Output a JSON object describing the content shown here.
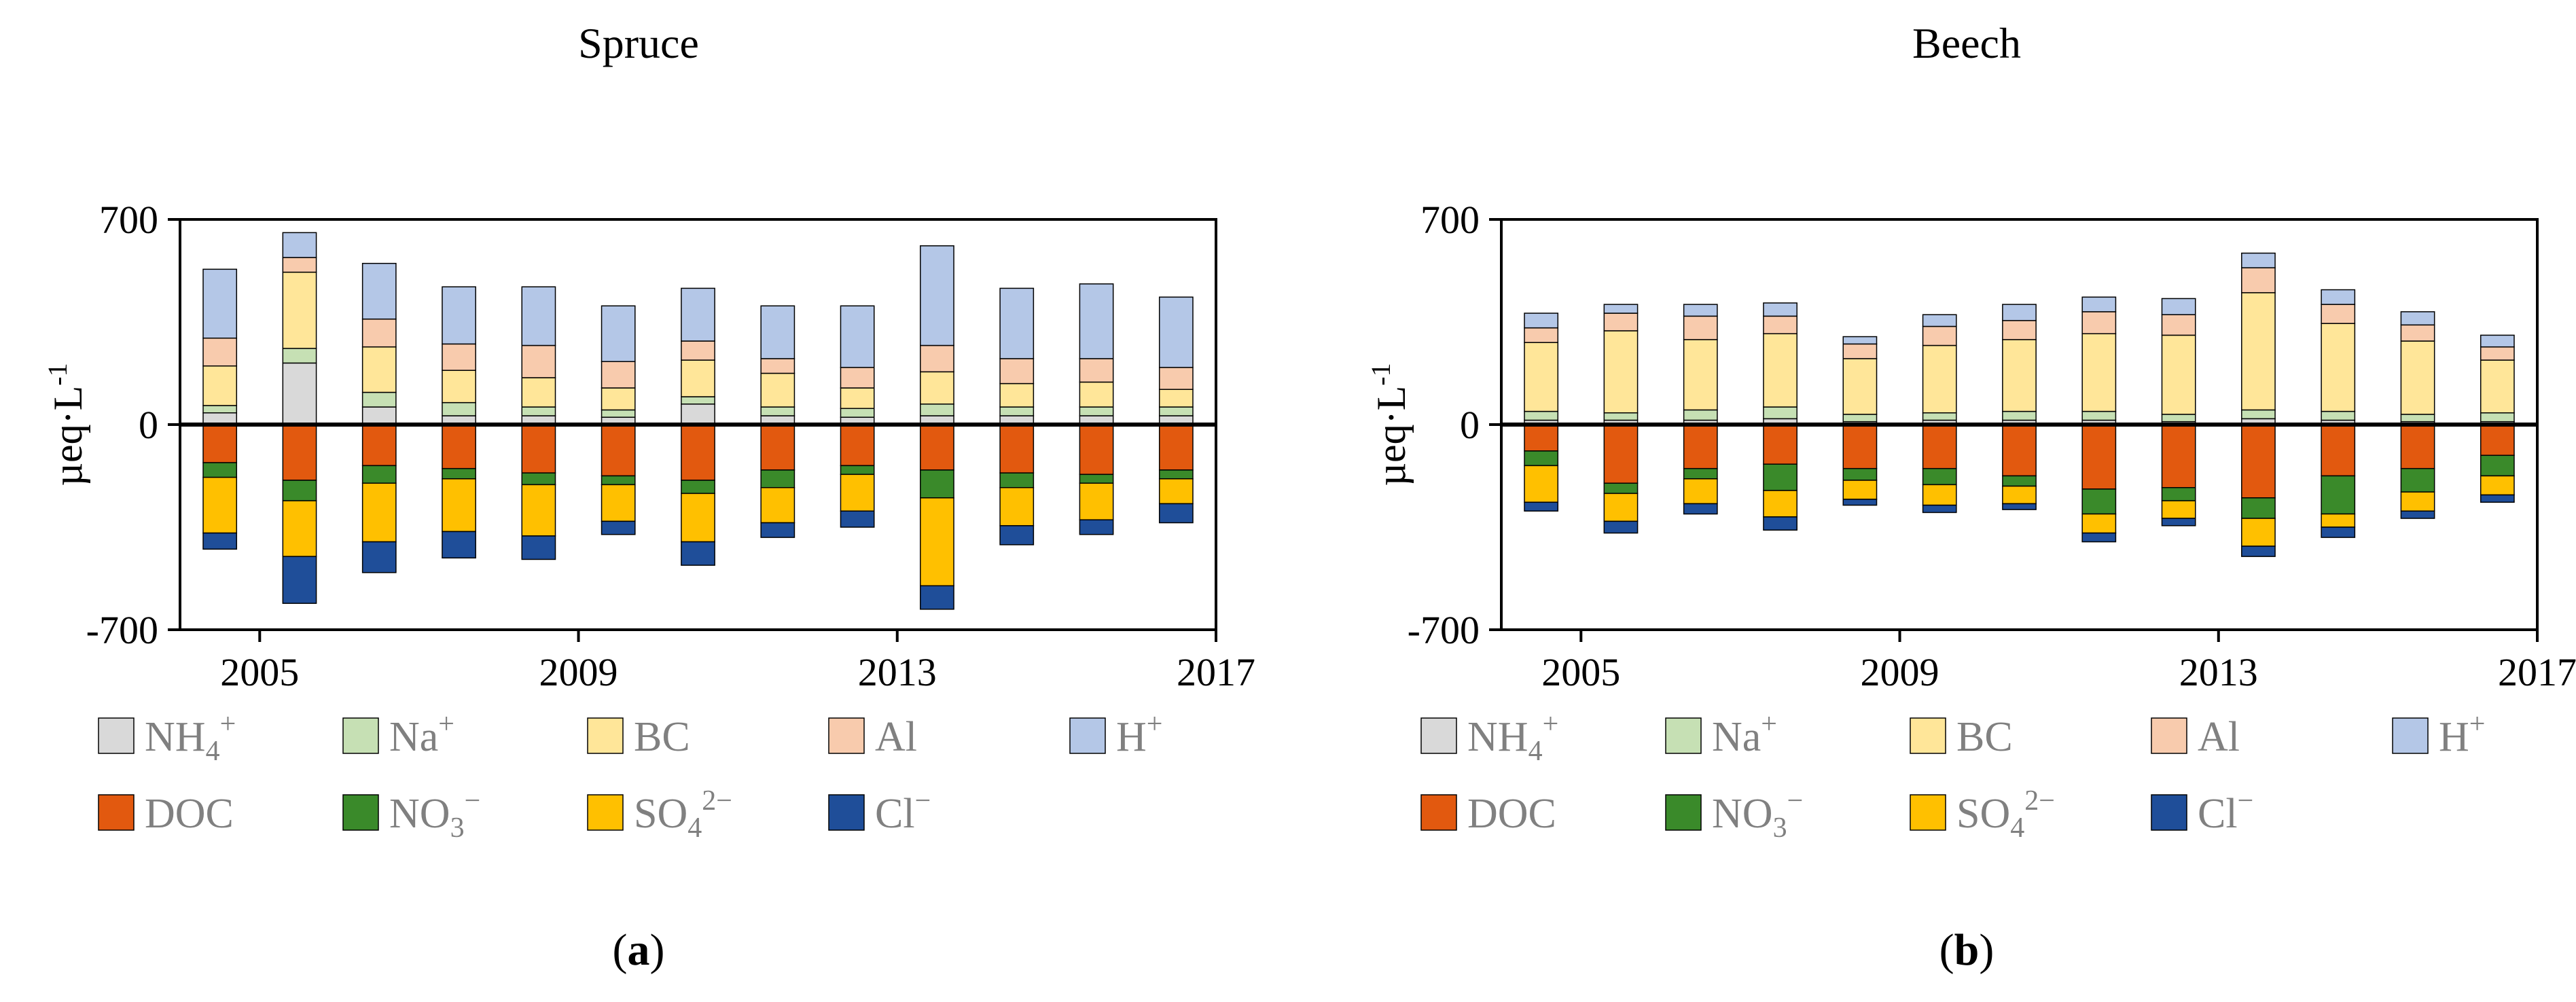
{
  "colors": {
    "NH4": "#d9d9d9",
    "Na": "#c6e0b4",
    "BC": "#ffe699",
    "Al": "#f8cbad",
    "H": "#b4c7e7",
    "DOC": "#e2590f",
    "NO3": "#3a8a2a",
    "SO4": "#ffc000",
    "Cl": "#1f4e99"
  },
  "legend": [
    {
      "key": "NH4",
      "base": "NH",
      "sub": "4",
      "sup": "+"
    },
    {
      "key": "Na",
      "base": "Na",
      "sub": "",
      "sup": "+"
    },
    {
      "key": "BC",
      "base": "BC",
      "sub": "",
      "sup": ""
    },
    {
      "key": "Al",
      "base": "Al",
      "sub": "",
      "sup": ""
    },
    {
      "key": "H",
      "base": "H",
      "sub": "",
      "sup": "+"
    },
    {
      "key": "DOC",
      "base": "DOC",
      "sub": "",
      "sup": ""
    },
    {
      "key": "NO3",
      "base": "NO",
      "sub": "3",
      "sup": "−"
    },
    {
      "key": "SO4",
      "base": "SO",
      "sub": "4",
      "sup": "2−"
    },
    {
      "key": "Cl",
      "base": "Cl",
      "sub": "",
      "sup": "−"
    }
  ],
  "chart_data": [
    {
      "type": "bar",
      "stacked": true,
      "title": "Spruce",
      "panel_label": "a",
      "ylabel_base": "µeq·L",
      "ylabel_sup": "-1",
      "ylim": [
        -700,
        700
      ],
      "yticks": [
        700,
        0,
        -700
      ],
      "x": [
        2005,
        2006,
        2007,
        2008,
        2009,
        2010,
        2011,
        2012,
        2013,
        2014,
        2015,
        2016,
        2017
      ],
      "xticks": [
        2005,
        2009,
        2013,
        2017
      ],
      "positive_series": [
        {
          "key": "NH4",
          "name": "NH4+",
          "values": [
            40,
            210,
            60,
            30,
            30,
            25,
            70,
            30,
            25,
            30,
            30,
            30,
            30
          ]
        },
        {
          "key": "Na",
          "name": "Na+",
          "values": [
            25,
            50,
            50,
            45,
            30,
            25,
            25,
            30,
            30,
            40,
            30,
            30,
            30
          ]
        },
        {
          "key": "BC",
          "name": "BC",
          "values": [
            135,
            260,
            155,
            110,
            100,
            75,
            125,
            115,
            70,
            110,
            80,
            85,
            60
          ]
        },
        {
          "key": "Al",
          "name": "Al",
          "values": [
            95,
            50,
            95,
            90,
            110,
            90,
            65,
            50,
            70,
            90,
            85,
            80,
            75
          ]
        },
        {
          "key": "H",
          "name": "H+",
          "values": [
            235,
            85,
            190,
            195,
            200,
            190,
            180,
            180,
            210,
            340,
            240,
            255,
            240
          ]
        }
      ],
      "negative_series": [
        {
          "key": "DOC",
          "name": "DOC",
          "values": [
            130,
            190,
            140,
            150,
            165,
            175,
            190,
            155,
            140,
            155,
            165,
            170,
            155
          ]
        },
        {
          "key": "NO3",
          "name": "NO3−",
          "values": [
            50,
            70,
            60,
            35,
            40,
            30,
            45,
            60,
            30,
            95,
            50,
            30,
            30
          ]
        },
        {
          "key": "SO4",
          "name": "SO4²−",
          "values": [
            190,
            190,
            200,
            180,
            175,
            125,
            165,
            120,
            125,
            300,
            130,
            125,
            85
          ]
        },
        {
          "key": "Cl",
          "name": "Cl−",
          "values": [
            55,
            160,
            105,
            90,
            80,
            45,
            80,
            50,
            55,
            80,
            65,
            50,
            65
          ]
        }
      ]
    },
    {
      "type": "bar",
      "stacked": true,
      "title": "Beech",
      "panel_label": "b",
      "ylabel_base": "µeq·L",
      "ylabel_sup": "-1",
      "ylim": [
        -700,
        700
      ],
      "yticks": [
        700,
        0,
        -700
      ],
      "x": [
        2005,
        2006,
        2007,
        2008,
        2009,
        2010,
        2011,
        2012,
        2013,
        2014,
        2015,
        2016,
        2017
      ],
      "xticks": [
        2005,
        2009,
        2013,
        2017
      ],
      "positive_series": [
        {
          "key": "NH4",
          "name": "NH4+",
          "values": [
            15,
            15,
            15,
            20,
            10,
            15,
            15,
            15,
            10,
            20,
            15,
            10,
            10
          ]
        },
        {
          "key": "Na",
          "name": "Na+",
          "values": [
            30,
            25,
            35,
            40,
            25,
            25,
            30,
            30,
            25,
            30,
            30,
            25,
            30
          ]
        },
        {
          "key": "BC",
          "name": "BC",
          "values": [
            235,
            280,
            240,
            250,
            190,
            230,
            245,
            265,
            270,
            400,
            300,
            250,
            180
          ]
        },
        {
          "key": "Al",
          "name": "Al",
          "values": [
            50,
            60,
            80,
            60,
            50,
            65,
            65,
            75,
            70,
            85,
            65,
            55,
            45
          ]
        },
        {
          "key": "H",
          "name": "H+",
          "values": [
            50,
            30,
            40,
            45,
            25,
            40,
            55,
            50,
            55,
            50,
            50,
            45,
            40
          ]
        }
      ],
      "negative_series": [
        {
          "key": "DOC",
          "name": "DOC",
          "values": [
            90,
            200,
            150,
            135,
            150,
            150,
            175,
            220,
            215,
            250,
            175,
            150,
            105
          ]
        },
        {
          "key": "NO3",
          "name": "NO3−",
          "values": [
            50,
            35,
            35,
            90,
            40,
            55,
            35,
            85,
            45,
            70,
            130,
            80,
            70
          ]
        },
        {
          "key": "SO4",
          "name": "SO4²−",
          "values": [
            125,
            95,
            85,
            90,
            65,
            70,
            60,
            65,
            60,
            95,
            45,
            65,
            65
          ]
        },
        {
          "key": "Cl",
          "name": "Cl−",
          "values": [
            30,
            40,
            35,
            45,
            20,
            25,
            20,
            30,
            25,
            35,
            35,
            25,
            25
          ]
        }
      ]
    }
  ]
}
